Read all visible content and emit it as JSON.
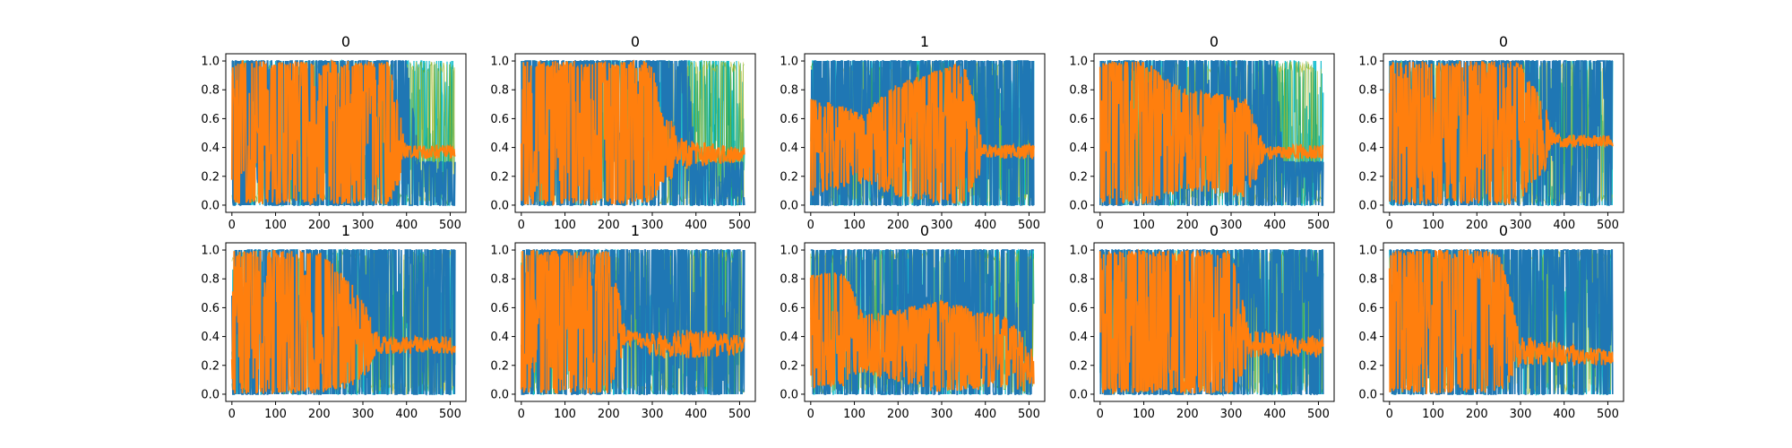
{
  "chart_data": [
    {
      "type": "line",
      "title": "0",
      "xlim": [
        -14,
        536
      ],
      "ylim": [
        -0.05,
        1.05
      ],
      "x_ticks": [
        "0",
        "100",
        "200",
        "300",
        "400",
        "500"
      ],
      "y_ticks": [
        "0.0",
        "0.2",
        "0.4",
        "0.6",
        "0.8",
        "1.0"
      ],
      "grid": false,
      "legend": "none",
      "orange_band": [
        [
          0,
          0.05,
          0.95
        ],
        [
          100,
          0.05,
          0.95
        ],
        [
          200,
          0.05,
          0.95
        ],
        [
          300,
          0.05,
          0.95
        ],
        [
          360,
          0.05,
          0.95
        ],
        [
          400,
          0.32,
          0.42
        ],
        [
          512,
          0.32,
          0.42
        ]
      ],
      "blue_band": [
        [
          0,
          0.0,
          1.0
        ],
        [
          400,
          0.0,
          1.0
        ],
        [
          430,
          0.0,
          0.3
        ],
        [
          512,
          0.0,
          0.3
        ]
      ]
    },
    {
      "type": "line",
      "title": "0",
      "xlim": [
        -14,
        536
      ],
      "ylim": [
        -0.05,
        1.05
      ],
      "x_ticks": [
        "0",
        "100",
        "200",
        "300",
        "400",
        "500"
      ],
      "y_ticks": [
        "0.0",
        "0.2",
        "0.4",
        "0.6",
        "0.8",
        "1.0"
      ],
      "grid": false,
      "legend": "none",
      "orange_band": [
        [
          0,
          0.05,
          0.95
        ],
        [
          300,
          0.05,
          0.95
        ],
        [
          320,
          0.2,
          0.6
        ],
        [
          380,
          0.25,
          0.45
        ],
        [
          512,
          0.3,
          0.4
        ]
      ],
      "blue_band": [
        [
          0,
          0.0,
          1.0
        ],
        [
          380,
          0.0,
          1.0
        ],
        [
          400,
          0.0,
          0.3
        ],
        [
          512,
          0.0,
          0.3
        ]
      ]
    },
    {
      "type": "line",
      "title": "1",
      "xlim": [
        -14,
        536
      ],
      "ylim": [
        -0.05,
        1.05
      ],
      "x_ticks": [
        "0",
        "100",
        "200",
        "300",
        "400",
        "500"
      ],
      "y_ticks": [
        "0.0",
        "0.2",
        "0.4",
        "0.6",
        "0.8",
        "1.0"
      ],
      "grid": false,
      "legend": "none",
      "orange_band": [
        [
          0,
          0.1,
          0.7
        ],
        [
          120,
          0.2,
          0.6
        ],
        [
          200,
          0.1,
          0.8
        ],
        [
          350,
          0.05,
          0.95
        ],
        [
          400,
          0.32,
          0.42
        ],
        [
          512,
          0.32,
          0.42
        ]
      ],
      "blue_band": [
        [
          0,
          0.0,
          1.0
        ],
        [
          512,
          0.0,
          1.0
        ]
      ]
    },
    {
      "type": "line",
      "title": "0",
      "xlim": [
        -14,
        536
      ],
      "ylim": [
        -0.05,
        1.05
      ],
      "x_ticks": [
        "0",
        "100",
        "200",
        "300",
        "400",
        "500"
      ],
      "y_ticks": [
        "0.0",
        "0.2",
        "0.4",
        "0.6",
        "0.8",
        "1.0"
      ],
      "grid": false,
      "legend": "none",
      "orange_band": [
        [
          0,
          0.05,
          0.95
        ],
        [
          100,
          0.05,
          0.95
        ],
        [
          200,
          0.15,
          0.75
        ],
        [
          330,
          0.1,
          0.7
        ],
        [
          380,
          0.32,
          0.42
        ],
        [
          512,
          0.32,
          0.42
        ]
      ],
      "blue_band": [
        [
          0,
          0.0,
          1.0
        ],
        [
          400,
          0.0,
          1.0
        ],
        [
          420,
          0.0,
          0.3
        ],
        [
          512,
          0.0,
          0.3
        ]
      ]
    },
    {
      "type": "line",
      "title": "0",
      "xlim": [
        -14,
        536
      ],
      "ylim": [
        -0.05,
        1.05
      ],
      "x_ticks": [
        "0",
        "100",
        "200",
        "300",
        "400",
        "500"
      ],
      "y_ticks": [
        "0.0",
        "0.2",
        "0.4",
        "0.6",
        "0.8",
        "1.0"
      ],
      "grid": false,
      "legend": "none",
      "orange_band": [
        [
          0,
          0.05,
          0.95
        ],
        [
          300,
          0.05,
          0.95
        ],
        [
          380,
          0.4,
          0.5
        ],
        [
          512,
          0.4,
          0.48
        ]
      ],
      "blue_band": [
        [
          0,
          0.0,
          1.0
        ],
        [
          512,
          0.0,
          1.0
        ]
      ]
    },
    {
      "type": "line",
      "title": "1",
      "xlim": [
        -14,
        536
      ],
      "ylim": [
        -0.05,
        1.05
      ],
      "x_ticks": [
        "0",
        "100",
        "200",
        "300",
        "400",
        "500"
      ],
      "y_ticks": [
        "0.0",
        "0.2",
        "0.4",
        "0.6",
        "0.8",
        "1.0"
      ],
      "grid": false,
      "legend": "none",
      "orange_band": [
        [
          0,
          0.05,
          0.95
        ],
        [
          200,
          0.05,
          0.95
        ],
        [
          280,
          0.1,
          0.7
        ],
        [
          340,
          0.28,
          0.4
        ],
        [
          512,
          0.28,
          0.4
        ]
      ],
      "blue_band": [
        [
          0,
          0.0,
          1.0
        ],
        [
          512,
          0.0,
          1.0
        ]
      ]
    },
    {
      "type": "line",
      "title": "1",
      "xlim": [
        -14,
        536
      ],
      "ylim": [
        -0.05,
        1.05
      ],
      "x_ticks": [
        "0",
        "100",
        "200",
        "300",
        "400",
        "500"
      ],
      "y_ticks": [
        "0.0",
        "0.2",
        "0.4",
        "0.6",
        "0.8",
        "1.0"
      ],
      "grid": false,
      "legend": "none",
      "orange_band": [
        [
          0,
          0.05,
          0.95
        ],
        [
          200,
          0.05,
          0.95
        ],
        [
          240,
          0.35,
          0.45
        ],
        [
          320,
          0.25,
          0.45
        ],
        [
          420,
          0.25,
          0.45
        ],
        [
          512,
          0.28,
          0.4
        ]
      ],
      "blue_band": [
        [
          0,
          0.0,
          1.0
        ],
        [
          512,
          0.0,
          1.0
        ]
      ]
    },
    {
      "type": "line",
      "title": "0",
      "xlim": [
        -14,
        536
      ],
      "ylim": [
        -0.05,
        1.05
      ],
      "x_ticks": [
        "0",
        "100",
        "200",
        "300",
        "400",
        "500"
      ],
      "y_ticks": [
        "0.0",
        "0.2",
        "0.4",
        "0.6",
        "0.8",
        "1.0"
      ],
      "grid": false,
      "legend": "none",
      "orange_band": [
        [
          0,
          0.1,
          0.8
        ],
        [
          80,
          0.1,
          0.8
        ],
        [
          120,
          0.2,
          0.5
        ],
        [
          300,
          0.05,
          0.6
        ],
        [
          440,
          0.1,
          0.5
        ],
        [
          512,
          0.05,
          0.3
        ]
      ],
      "blue_band": [
        [
          0,
          0.0,
          1.0
        ],
        [
          512,
          0.0,
          1.0
        ]
      ]
    },
    {
      "type": "line",
      "title": "0",
      "xlim": [
        -14,
        536
      ],
      "ylim": [
        -0.05,
        1.05
      ],
      "x_ticks": [
        "0",
        "100",
        "200",
        "300",
        "400",
        "500"
      ],
      "y_ticks": [
        "0.0",
        "0.2",
        "0.4",
        "0.6",
        "0.8",
        "1.0"
      ],
      "grid": false,
      "legend": "none",
      "orange_band": [
        [
          0,
          0.05,
          0.95
        ],
        [
          300,
          0.05,
          0.95
        ],
        [
          340,
          0.25,
          0.45
        ],
        [
          512,
          0.25,
          0.4
        ]
      ],
      "blue_band": [
        [
          0,
          0.0,
          1.0
        ],
        [
          512,
          0.0,
          1.0
        ]
      ]
    },
    {
      "type": "line",
      "title": "0",
      "xlim": [
        -14,
        536
      ],
      "ylim": [
        -0.05,
        1.05
      ],
      "x_ticks": [
        "0",
        "100",
        "200",
        "300",
        "400",
        "500"
      ],
      "y_ticks": [
        "0.0",
        "0.2",
        "0.4",
        "0.6",
        "0.8",
        "1.0"
      ],
      "grid": false,
      "legend": "none",
      "orange_band": [
        [
          0,
          0.05,
          0.95
        ],
        [
          250,
          0.05,
          0.95
        ],
        [
          300,
          0.2,
          0.4
        ],
        [
          512,
          0.2,
          0.3
        ]
      ],
      "blue_band": [
        [
          0,
          0.0,
          1.0
        ],
        [
          512,
          0.0,
          1.0
        ]
      ]
    }
  ],
  "colors": {
    "blue": "#1f77b4",
    "orange": "#ff7f0e",
    "cyan": "#17becf",
    "green": "#2ca02c",
    "olive": "#bcbd22",
    "axis": "#000000"
  }
}
